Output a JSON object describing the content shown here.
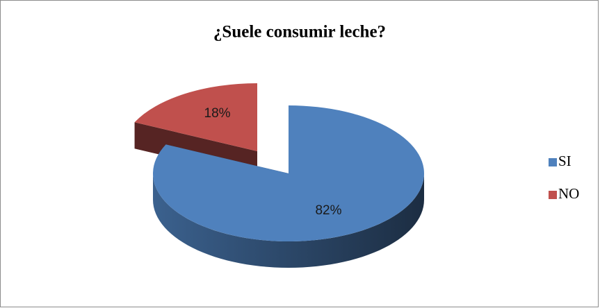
{
  "chart_data": {
    "type": "pie",
    "title": "¿Suele consumir leche?",
    "categories": [
      "SI",
      "NO"
    ],
    "values": [
      82,
      18
    ],
    "value_labels": [
      "82%",
      "18%"
    ],
    "colors": [
      "#4f81bd",
      "#c0504d"
    ],
    "legend": "right"
  }
}
